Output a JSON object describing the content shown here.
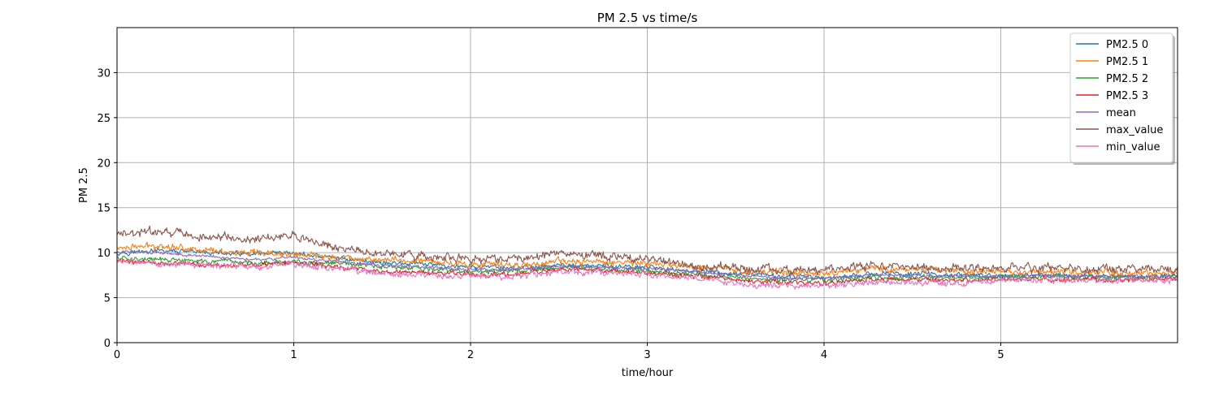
{
  "chart_data": {
    "type": "line",
    "title": "PM 2.5 vs time/s",
    "xlabel": "time/hour",
    "ylabel": "PM 2.5",
    "xlim": [
      0,
      6
    ],
    "ylim": [
      0,
      35
    ],
    "xticks": [
      0,
      1,
      2,
      3,
      4,
      5
    ],
    "yticks": [
      0,
      5,
      10,
      15,
      20,
      25,
      30
    ],
    "grid": true,
    "legend_position": "top-right",
    "x": [
      0.0,
      0.25,
      0.5,
      0.75,
      1.0,
      1.25,
      1.5,
      1.75,
      2.0,
      2.25,
      2.5,
      2.75,
      3.0,
      3.25,
      3.5,
      3.75,
      4.0,
      4.25,
      4.5,
      4.75,
      5.0,
      5.25,
      5.5,
      5.75,
      6.0
    ],
    "series": [
      {
        "name": "PM2.5 0",
        "color": "#1f77b4",
        "values": [
          10.0,
          10.2,
          10.0,
          9.8,
          9.9,
          9.4,
          8.9,
          8.7,
          8.4,
          8.3,
          8.6,
          8.5,
          8.3,
          8.0,
          7.6,
          7.4,
          7.2,
          7.6,
          7.7,
          7.5,
          7.4,
          7.5,
          7.4,
          7.4,
          7.4
        ]
      },
      {
        "name": "PM2.5 1",
        "color": "#ff7f0e",
        "values": [
          10.5,
          10.8,
          10.3,
          9.9,
          9.8,
          9.5,
          9.2,
          9.1,
          8.7,
          8.6,
          9.0,
          9.0,
          8.8,
          8.5,
          8.1,
          7.8,
          7.7,
          8.2,
          8.2,
          8.0,
          7.8,
          8.0,
          7.8,
          7.8,
          7.8
        ]
      },
      {
        "name": "PM2.5 2",
        "color": "#2ca02c",
        "values": [
          9.4,
          9.2,
          9.0,
          8.9,
          8.9,
          8.8,
          8.4,
          8.2,
          7.9,
          7.9,
          8.4,
          8.2,
          8.0,
          7.6,
          7.3,
          7.0,
          7.0,
          7.2,
          7.3,
          7.2,
          7.3,
          7.4,
          7.3,
          7.3,
          7.3
        ]
      },
      {
        "name": "PM2.5 3",
        "color": "#d62728",
        "values": [
          9.1,
          8.9,
          8.6,
          8.6,
          8.9,
          8.4,
          7.9,
          7.8,
          7.6,
          7.6,
          8.1,
          8.0,
          7.8,
          7.4,
          6.9,
          6.7,
          6.6,
          7.0,
          7.0,
          6.9,
          7.0,
          7.0,
          7.0,
          7.0,
          7.0
        ]
      },
      {
        "name": "mean",
        "color": "#9467bd",
        "values": [
          10.1,
          10.0,
          9.6,
          9.3,
          9.4,
          9.0,
          8.6,
          8.4,
          8.1,
          8.1,
          8.5,
          8.4,
          8.2,
          7.9,
          7.5,
          7.2,
          7.1,
          7.5,
          7.5,
          7.4,
          7.4,
          7.5,
          7.4,
          7.4,
          7.4
        ]
      },
      {
        "name": "max_value",
        "color": "#8c564b",
        "values": [
          12.0,
          12.4,
          11.7,
          11.5,
          11.8,
          10.5,
          9.9,
          9.6,
          9.3,
          9.3,
          9.9,
          9.6,
          9.2,
          8.6,
          8.3,
          8.0,
          8.1,
          8.5,
          8.4,
          8.3,
          8.2,
          8.3,
          8.1,
          8.2,
          8.1
        ]
      },
      {
        "name": "min_value",
        "color": "#e377c2",
        "values": [
          9.0,
          8.8,
          8.6,
          8.4,
          8.7,
          8.2,
          7.6,
          7.5,
          7.4,
          7.3,
          7.9,
          7.8,
          7.6,
          7.2,
          6.6,
          6.3,
          6.3,
          6.7,
          6.7,
          6.6,
          6.9,
          6.9,
          6.9,
          6.9,
          6.9
        ]
      }
    ]
  }
}
